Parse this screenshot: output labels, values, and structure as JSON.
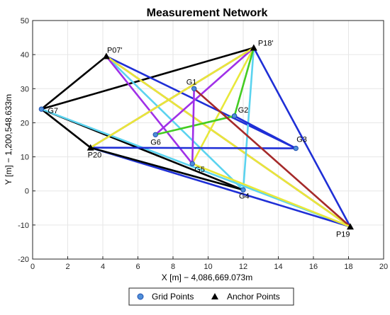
{
  "chart_data": {
    "type": "network",
    "title": "Measurement Network",
    "xlabel": "X [m] − 4,086,669.073m",
    "ylabel": "Y [m] − 1,200,548.633m",
    "xlim": [
      0,
      20
    ],
    "ylim": [
      -20,
      50
    ],
    "xticks": [
      0,
      2,
      4,
      6,
      8,
      10,
      12,
      14,
      16,
      18,
      20
    ],
    "yticks": [
      -20,
      -10,
      0,
      10,
      20,
      30,
      40,
      50
    ],
    "grid": true,
    "legend_position": "bottom-center",
    "legend": [
      {
        "label": "Grid Points",
        "marker": "circle",
        "color": "#4f8fd8"
      },
      {
        "label": "Anchor Points",
        "marker": "triangle",
        "color": "#000000"
      }
    ],
    "anchor_points": [
      {
        "name": "P07'",
        "x": 4.2,
        "y": 39.5
      },
      {
        "name": "P18'",
        "x": 12.6,
        "y": 42.0
      },
      {
        "name": "P19",
        "x": 18.1,
        "y": -10.5
      },
      {
        "name": "P20",
        "x": 3.3,
        "y": 12.7
      }
    ],
    "grid_points": [
      {
        "name": "G1",
        "x": 9.2,
        "y": 30.0
      },
      {
        "name": "G2",
        "x": 11.5,
        "y": 22.0
      },
      {
        "name": "G3",
        "x": 15.0,
        "y": 12.5
      },
      {
        "name": "G4",
        "x": 12.0,
        "y": 0.3
      },
      {
        "name": "G5",
        "x": 9.1,
        "y": 8.0
      },
      {
        "name": "G6",
        "x": 7.0,
        "y": 16.5
      },
      {
        "name": "G7",
        "x": 0.5,
        "y": 24.0
      }
    ],
    "edges": [
      {
        "from": "G7",
        "to": "P07'",
        "color": "#000000"
      },
      {
        "from": "G7",
        "to": "P18'",
        "color": "#000000"
      },
      {
        "from": "G7",
        "to": "P20",
        "color": "#000000"
      },
      {
        "from": "G7",
        "to": "G4",
        "color": "#000000"
      },
      {
        "from": "G7",
        "to": "P19",
        "color": "#5bd3ef"
      },
      {
        "from": "P07'",
        "to": "P19",
        "color": "#a52a2a"
      },
      {
        "from": "P07'",
        "to": "G3",
        "color": "#1f2fd6"
      },
      {
        "from": "P07'",
        "to": "G4",
        "color": "#5bd3ef"
      },
      {
        "from": "P07'",
        "to": "G5",
        "color": "#a030e8"
      },
      {
        "from": "P07'",
        "to": "P19",
        "color": "#e8e83a"
      },
      {
        "from": "P18'",
        "to": "P20",
        "color": "#a52a2a"
      },
      {
        "from": "P18'",
        "to": "G5",
        "color": "#e8e83a"
      },
      {
        "from": "P18'",
        "to": "G4",
        "color": "#5bd3ef"
      },
      {
        "from": "P18'",
        "to": "G2",
        "color": "#44cc22"
      },
      {
        "from": "P18'",
        "to": "G6",
        "color": "#a030e8"
      },
      {
        "from": "P18'",
        "to": "P19",
        "color": "#1f2fd6"
      },
      {
        "from": "P20",
        "to": "G3",
        "color": "#1f2fd6"
      },
      {
        "from": "P20",
        "to": "P18'",
        "color": "#e8e83a"
      },
      {
        "from": "P20",
        "to": "P19",
        "color": "#1f2fd6"
      },
      {
        "from": "P20",
        "to": "G4",
        "color": "#5bd3ef"
      },
      {
        "from": "G6",
        "to": "G2",
        "color": "#44cc22"
      },
      {
        "from": "G1",
        "to": "P19",
        "color": "#a52a2a"
      },
      {
        "from": "G1",
        "to": "G5",
        "color": "#a030e8"
      },
      {
        "from": "G2",
        "to": "G3",
        "color": "#1f2fd6"
      },
      {
        "from": "G5",
        "to": "P19",
        "color": "#e8e83a"
      },
      {
        "from": "G4",
        "to": "P20",
        "color": "#000000"
      }
    ]
  }
}
